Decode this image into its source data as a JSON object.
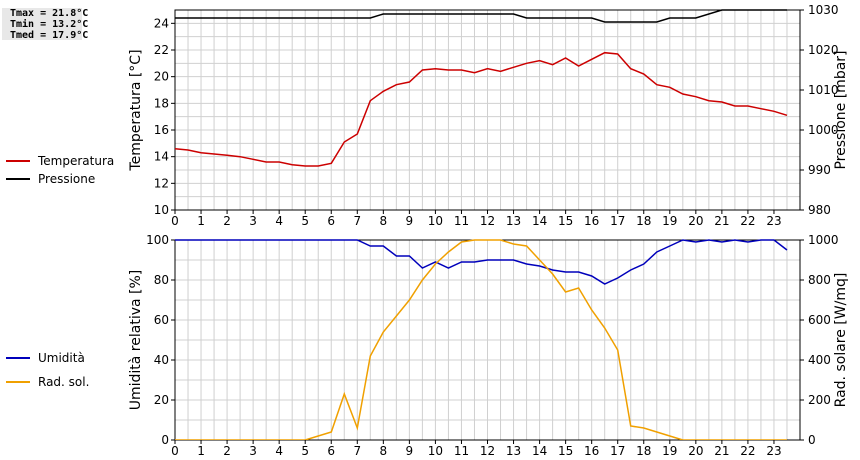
{
  "stats": {
    "tmax": "Tmax = 21.8°C",
    "tmin": "Tmin = 13.2°C",
    "tmed": "Tmed = 17.9°C"
  },
  "colors": {
    "temperature": "#cc0000",
    "pressure": "#000000",
    "humidity": "#0000bb",
    "solar": "#f0a000",
    "grid": "#d0d0d0"
  },
  "chart_data": [
    {
      "type": "line",
      "ylabel": "Temperatura [°C]",
      "y2label": "Pressione [mbar]",
      "x_ticks": [
        "0",
        "1",
        "2",
        "3",
        "4",
        "5",
        "6",
        "7",
        "8",
        "9",
        "10",
        "11",
        "12",
        "13",
        "14",
        "15",
        "16",
        "17",
        "18",
        "19",
        "20",
        "21",
        "22",
        "23"
      ],
      "ylim": [
        10,
        25
      ],
      "y_ticks": [
        "10",
        "12",
        "14",
        "16",
        "18",
        "20",
        "22",
        "24"
      ],
      "y2lim": [
        980,
        1030
      ],
      "y2_ticks": [
        "980",
        "990",
        "1000",
        "1010",
        "1020",
        "1030"
      ],
      "grid": true,
      "legend_placement": "left",
      "series": [
        {
          "name": "Temperatura",
          "axis": "left",
          "x": [
            0,
            0.5,
            1,
            1.5,
            2,
            2.5,
            3,
            3.5,
            4,
            4.5,
            5,
            5.5,
            6,
            6.5,
            7,
            7.5,
            8,
            8.5,
            9,
            9.5,
            10,
            10.5,
            11,
            11.5,
            12,
            12.5,
            13,
            13.5,
            14,
            14.5,
            15,
            15.5,
            16,
            16.5,
            17,
            17.5,
            18,
            18.5,
            19,
            19.5,
            20,
            20.5,
            21,
            21.5,
            22,
            22.5,
            23,
            23.5
          ],
          "y": [
            14.6,
            14.5,
            14.3,
            14.2,
            14.1,
            14.0,
            13.8,
            13.6,
            13.6,
            13.4,
            13.3,
            13.3,
            13.5,
            15.1,
            15.7,
            18.2,
            18.9,
            19.4,
            19.6,
            20.5,
            20.6,
            20.5,
            20.5,
            20.3,
            20.6,
            20.4,
            20.7,
            21.0,
            21.2,
            20.9,
            21.4,
            20.8,
            21.3,
            21.8,
            21.7,
            20.6,
            20.2,
            19.4,
            19.2,
            18.7,
            18.5,
            18.2,
            18.1,
            17.8,
            17.8,
            17.6,
            17.4,
            17.1
          ]
        },
        {
          "name": "Pressione",
          "axis": "right",
          "x": [
            0,
            7.5,
            8,
            13,
            13.5,
            16,
            16.5,
            18.5,
            19,
            20,
            21,
            22,
            23.5
          ],
          "y": [
            1028,
            1028,
            1029,
            1029,
            1028,
            1028,
            1027,
            1027,
            1028,
            1028,
            1030,
            1030,
            1030
          ]
        }
      ]
    },
    {
      "type": "line",
      "ylabel": "Umidità relativa [%]",
      "y2label": "Rad. solare [W/mq]",
      "x_ticks": [
        "0",
        "1",
        "2",
        "3",
        "4",
        "5",
        "6",
        "7",
        "8",
        "9",
        "10",
        "11",
        "12",
        "13",
        "14",
        "15",
        "16",
        "17",
        "18",
        "19",
        "20",
        "21",
        "22",
        "23"
      ],
      "ylim": [
        0,
        100
      ],
      "y_ticks": [
        "0",
        "20",
        "40",
        "60",
        "80",
        "100"
      ],
      "y2lim": [
        0,
        1000
      ],
      "y2_ticks": [
        "0",
        "200",
        "400",
        "600",
        "800",
        "1000"
      ],
      "grid": true,
      "legend_placement": "left",
      "series": [
        {
          "name": "Umidità",
          "axis": "left",
          "x": [
            0,
            7,
            7.5,
            8,
            8.5,
            9,
            9.5,
            10,
            10.5,
            11,
            11.5,
            12,
            12.5,
            13,
            13.5,
            14,
            14.5,
            15,
            15.5,
            16,
            16.5,
            17,
            17.5,
            18,
            18.5,
            19,
            19.5,
            20,
            20.5,
            21,
            21.5,
            22,
            22.5,
            23,
            23.5
          ],
          "y": [
            100,
            100,
            97,
            97,
            92,
            92,
            86,
            89,
            86,
            89,
            89,
            90,
            90,
            90,
            88,
            87,
            85,
            84,
            84,
            82,
            78,
            81,
            85,
            88,
            94,
            97,
            100,
            99,
            100,
            99,
            100,
            99,
            100,
            100,
            95
          ]
        },
        {
          "name": "Rad. sol.",
          "axis": "right",
          "x": [
            0,
            5,
            5.5,
            6,
            6.5,
            7,
            7.5,
            8,
            8.5,
            9,
            9.5,
            10,
            10.5,
            11,
            11.5,
            12,
            12.5,
            13,
            13.5,
            14,
            14.5,
            15,
            15.5,
            16,
            16.5,
            17,
            17.5,
            18,
            18.5,
            19,
            19.5,
            23.5
          ],
          "y": [
            0,
            0,
            20,
            40,
            230,
            60,
            420,
            540,
            620,
            700,
            800,
            880,
            940,
            990,
            1000,
            1000,
            1000,
            980,
            970,
            900,
            830,
            740,
            760,
            650,
            560,
            450,
            70,
            60,
            40,
            20,
            0,
            0
          ]
        }
      ]
    }
  ]
}
